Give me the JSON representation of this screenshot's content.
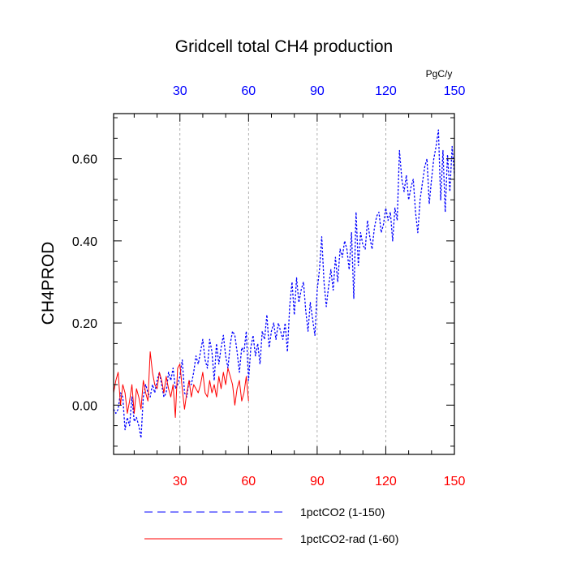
{
  "chart_data": {
    "type": "line",
    "title": "Gridcell total CH4 production",
    "ylabel": "CH4PROD",
    "top_axis_unit": "PgC/y",
    "xlim": [
      1,
      150
    ],
    "ylim": [
      -0.12,
      0.71
    ],
    "x_ticks": [
      30,
      60,
      90,
      120,
      150
    ],
    "x_tick_labels": [
      "30",
      "60",
      "90",
      "120",
      "150"
    ],
    "top_tick_labels": [
      "30",
      "60",
      "90",
      "120",
      "150"
    ],
    "y_ticks": [
      0.0,
      0.2,
      0.4,
      0.6
    ],
    "y_tick_labels": [
      "0.00",
      "0.20",
      "0.40",
      "0.60"
    ],
    "grid": "vertical dashed at x ticks",
    "series": [
      {
        "name": "1pctCO2 (1-150)",
        "color": "#0000ff",
        "style": "dashed",
        "x": [
          1,
          2,
          3,
          4,
          5,
          6,
          7,
          8,
          9,
          10,
          11,
          12,
          13,
          14,
          15,
          16,
          17,
          18,
          19,
          20,
          21,
          22,
          23,
          24,
          25,
          26,
          27,
          28,
          29,
          30,
          31,
          32,
          33,
          34,
          35,
          36,
          37,
          38,
          39,
          40,
          41,
          42,
          43,
          44,
          45,
          46,
          47,
          48,
          49,
          50,
          51,
          52,
          53,
          54,
          55,
          56,
          57,
          58,
          59,
          60,
          61,
          62,
          63,
          64,
          65,
          66,
          67,
          68,
          69,
          70,
          71,
          72,
          73,
          74,
          75,
          76,
          77,
          78,
          79,
          80,
          81,
          82,
          83,
          84,
          85,
          86,
          87,
          88,
          89,
          90,
          91,
          92,
          93,
          94,
          95,
          96,
          97,
          98,
          99,
          100,
          101,
          102,
          103,
          104,
          105,
          106,
          107,
          108,
          109,
          110,
          111,
          112,
          113,
          114,
          115,
          116,
          117,
          118,
          119,
          120,
          121,
          122,
          123,
          124,
          125,
          126,
          127,
          128,
          129,
          130,
          131,
          132,
          133,
          134,
          135,
          136,
          137,
          138,
          139,
          140,
          141,
          142,
          143,
          144,
          145,
          146,
          147,
          148,
          149,
          150
        ],
        "values": [
          -0.01,
          -0.02,
          -0.01,
          0.03,
          0.02,
          -0.06,
          -0.03,
          -0.05,
          0.02,
          -0.04,
          -0.03,
          -0.05,
          -0.08,
          0.02,
          0.05,
          0.03,
          0.02,
          0.05,
          0.03,
          0.06,
          0.08,
          0.05,
          0.02,
          0.03,
          0.08,
          0.06,
          0.09,
          0.04,
          0.05,
          0.07,
          0.11,
          0.03,
          0.02,
          0.06,
          0.05,
          0.08,
          0.12,
          0.1,
          0.13,
          0.16,
          0.11,
          0.09,
          0.16,
          0.13,
          0.06,
          0.15,
          0.1,
          0.14,
          0.17,
          0.12,
          0.09,
          0.15,
          0.18,
          0.17,
          0.13,
          0.08,
          0.14,
          0.13,
          0.18,
          0.06,
          0.14,
          0.17,
          0.12,
          0.15,
          0.1,
          0.18,
          0.16,
          0.22,
          0.14,
          0.18,
          0.2,
          0.16,
          0.2,
          0.18,
          0.16,
          0.2,
          0.13,
          0.24,
          0.3,
          0.22,
          0.31,
          0.25,
          0.28,
          0.3,
          0.23,
          0.18,
          0.25,
          0.21,
          0.17,
          0.28,
          0.33,
          0.41,
          0.3,
          0.24,
          0.29,
          0.33,
          0.28,
          0.36,
          0.3,
          0.38,
          0.36,
          0.4,
          0.38,
          0.33,
          0.42,
          0.26,
          0.47,
          0.34,
          0.42,
          0.39,
          0.38,
          0.45,
          0.41,
          0.38,
          0.43,
          0.46,
          0.47,
          0.42,
          0.44,
          0.48,
          0.45,
          0.47,
          0.4,
          0.48,
          0.45,
          0.62,
          0.55,
          0.52,
          0.56,
          0.5,
          0.53,
          0.55,
          0.47,
          0.42,
          0.5,
          0.54,
          0.58,
          0.6,
          0.49,
          0.55,
          0.6,
          0.63,
          0.67,
          0.5,
          0.62,
          0.47,
          0.61,
          0.52,
          0.63,
          0.56
        ]
      },
      {
        "name": "1pctCO2-rad (1-60)",
        "color": "#ff0000",
        "style": "solid",
        "x": [
          1,
          2,
          3,
          4,
          5,
          6,
          7,
          8,
          9,
          10,
          11,
          12,
          13,
          14,
          15,
          16,
          17,
          18,
          19,
          20,
          21,
          22,
          23,
          24,
          25,
          26,
          27,
          28,
          29,
          30,
          31,
          32,
          33,
          34,
          35,
          36,
          37,
          38,
          39,
          40,
          41,
          42,
          43,
          44,
          45,
          46,
          47,
          48,
          49,
          50,
          51,
          52,
          53,
          54,
          55,
          56,
          57,
          58,
          59,
          60
        ],
        "values": [
          0.03,
          0.06,
          0.08,
          0.0,
          0.05,
          0.03,
          -0.02,
          0.01,
          0.05,
          -0.02,
          0.04,
          0.02,
          -0.01,
          0.06,
          0.03,
          0.01,
          0.13,
          0.08,
          0.05,
          0.04,
          0.08,
          0.06,
          0.03,
          0.07,
          0.04,
          0.02,
          0.05,
          -0.03,
          0.09,
          0.1,
          0.04,
          -0.01,
          0.03,
          0.06,
          0.02,
          0.05,
          0.04,
          0.03,
          0.05,
          0.08,
          0.03,
          0.02,
          0.06,
          0.03,
          0.05,
          0.02,
          0.07,
          0.04,
          0.08,
          0.05,
          0.09,
          0.07,
          0.05,
          0.0,
          0.04,
          0.06,
          0.01,
          0.03,
          0.07,
          0.01
        ]
      }
    ],
    "legend": {
      "placement": "bottom",
      "entries": [
        "1pctCO2 (1-150)",
        "1pctCO2-rad (1-60)"
      ]
    },
    "colors": {
      "bottom_tick_labels": "#ff0000",
      "top_tick_labels": "#0000ff",
      "left_tick_labels": "#000000"
    }
  }
}
